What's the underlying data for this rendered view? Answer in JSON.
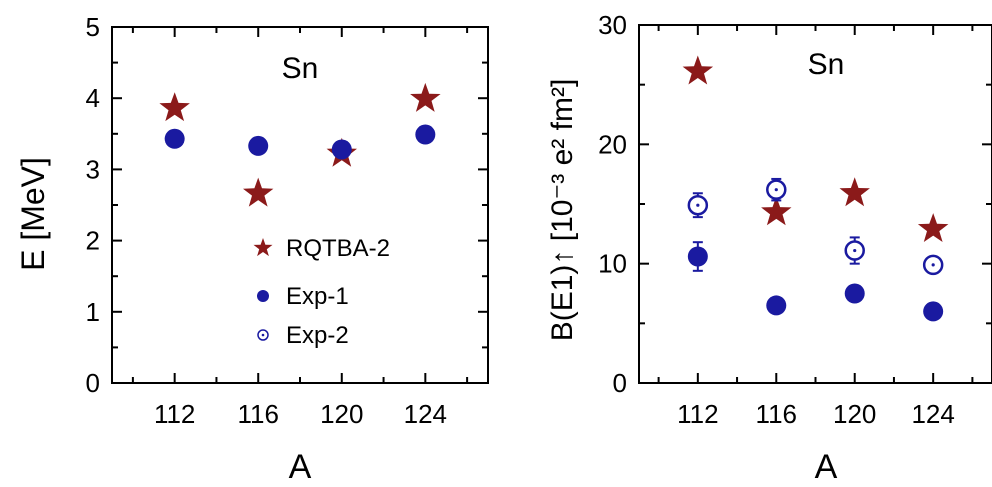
{
  "colors": {
    "rqtba": "#8b1a1a",
    "exp": "#1a1aa0",
    "axis": "#000000"
  },
  "chart_data": [
    {
      "type": "scatter",
      "annotation": "Sn",
      "xlabel": "A",
      "ylabel": "E [MeV]",
      "x_ticks": [
        "112",
        "116",
        "120",
        "124"
      ],
      "y_ticks": [
        "0",
        "1",
        "2",
        "3",
        "4",
        "5"
      ],
      "xlim": [
        109,
        127
      ],
      "ylim": [
        0,
        5
      ],
      "legend_position": "center",
      "legend": [
        {
          "label": "RQTBA-2",
          "marker": "star",
          "color": "#8b1a1a"
        },
        {
          "label": "Exp-1",
          "marker": "filled-circle",
          "color": "#1a1aa0"
        },
        {
          "label": "Exp-2",
          "marker": "open-circle",
          "color": "#1a1aa0"
        }
      ],
      "series": [
        {
          "name": "RQTBA-2",
          "marker": "star",
          "color": "#8b1a1a",
          "points": [
            {
              "x": 112,
              "y": 3.86
            },
            {
              "x": 116,
              "y": 2.66
            },
            {
              "x": 120,
              "y": 3.22
            },
            {
              "x": 124,
              "y": 3.99
            }
          ]
        },
        {
          "name": "Exp-1",
          "marker": "filled-circle",
          "color": "#1a1aa0",
          "points": [
            {
              "x": 112,
              "y": 3.43
            },
            {
              "x": 116,
              "y": 3.33
            },
            {
              "x": 120,
              "y": 3.28,
              "err": 0.1
            },
            {
              "x": 124,
              "y": 3.49
            }
          ]
        }
      ]
    },
    {
      "type": "scatter",
      "annotation": "Sn",
      "xlabel": "A",
      "ylabel": "B(E1)↑ [10⁻³ e² fm²]",
      "x_ticks": [
        "112",
        "116",
        "120",
        "124"
      ],
      "y_ticks": [
        "0",
        "10",
        "20",
        "30"
      ],
      "xlim": [
        109,
        127
      ],
      "ylim": [
        0,
        30
      ],
      "series": [
        {
          "name": "RQTBA-2",
          "marker": "star",
          "color": "#8b1a1a",
          "points": [
            {
              "x": 112,
              "y": 26.1
            },
            {
              "x": 116,
              "y": 14.3
            },
            {
              "x": 120,
              "y": 15.9
            },
            {
              "x": 124,
              "y": 12.9
            }
          ]
        },
        {
          "name": "Exp-1",
          "marker": "filled-circle",
          "color": "#1a1aa0",
          "points": [
            {
              "x": 112,
              "y": 10.6,
              "err": 1.2
            },
            {
              "x": 116,
              "y": 6.5
            },
            {
              "x": 120,
              "y": 7.5
            },
            {
              "x": 124,
              "y": 6.0
            }
          ]
        },
        {
          "name": "Exp-2",
          "marker": "open-circle",
          "color": "#1a1aa0",
          "points": [
            {
              "x": 112,
              "y": 14.9,
              "err": 1.0
            },
            {
              "x": 116,
              "y": 16.2,
              "err": 0.9
            },
            {
              "x": 120,
              "y": 11.1,
              "err": 1.1
            },
            {
              "x": 124,
              "y": 9.9,
              "err": 0.6
            }
          ]
        }
      ]
    }
  ]
}
